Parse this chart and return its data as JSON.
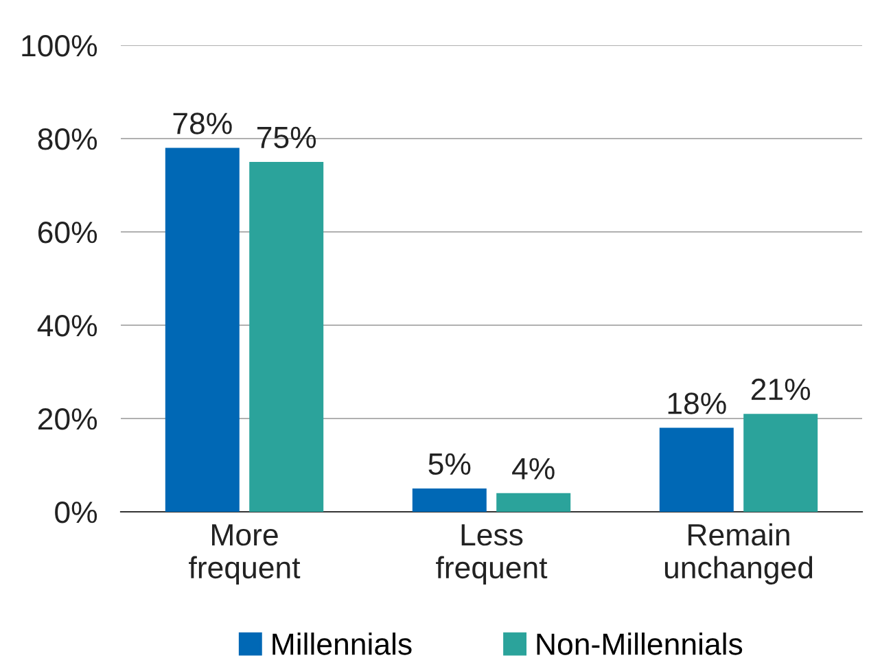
{
  "chart_data": {
    "type": "bar",
    "categories": [
      "More\nfrequent",
      "Less\nfrequent",
      "Remain\nunchanged"
    ],
    "series": [
      {
        "name": "Millennials",
        "color": "#0068b5",
        "values": [
          78,
          5,
          18
        ],
        "value_labels": [
          "78%",
          "5%",
          "18%"
        ]
      },
      {
        "name": "Non-Millennials",
        "color": "#2ba39b",
        "values": [
          75,
          4,
          21
        ],
        "value_labels": [
          "75%",
          "4%",
          "21%"
        ]
      }
    ],
    "ylim": [
      0,
      100
    ],
    "yticks": [
      {
        "value": 0,
        "label": "0%"
      },
      {
        "value": 20,
        "label": "20%"
      },
      {
        "value": 40,
        "label": "40%"
      },
      {
        "value": 60,
        "label": "60%"
      },
      {
        "value": 80,
        "label": "80%"
      },
      {
        "value": 100,
        "label": "100%"
      }
    ],
    "grid": "y",
    "legend": "bottom"
  }
}
